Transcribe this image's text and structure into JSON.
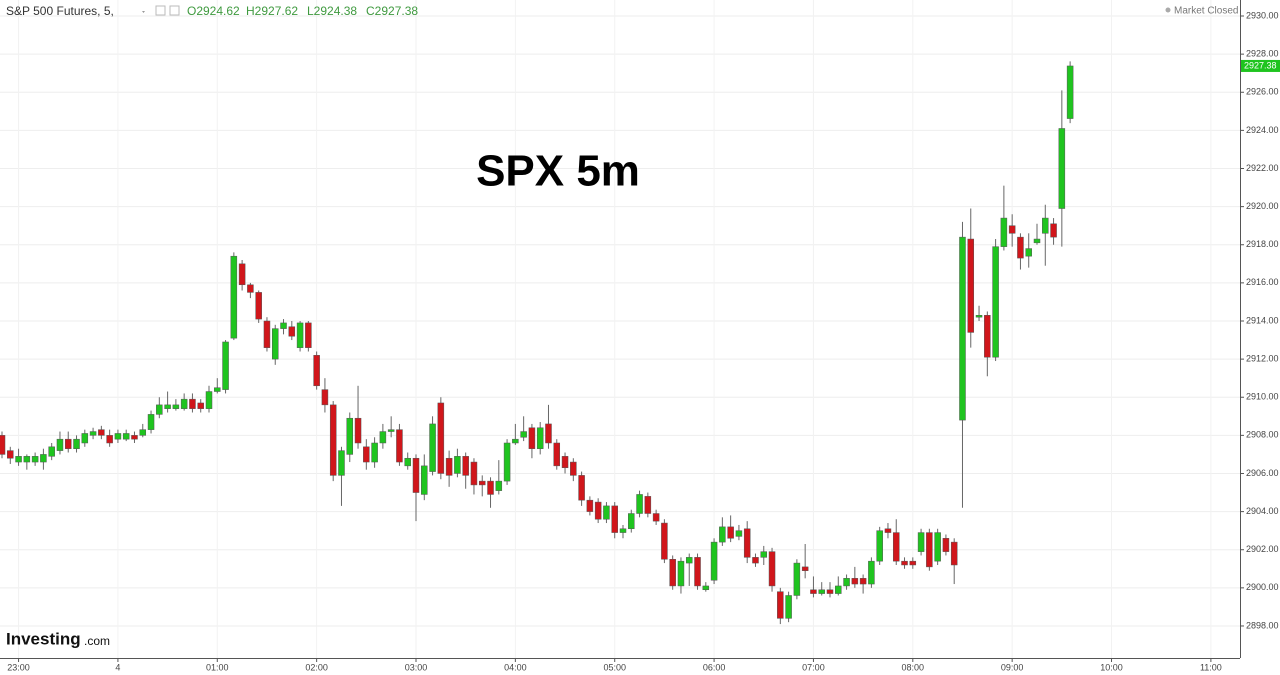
{
  "header": {
    "symbol": "S&P 500 Futures, 5,",
    "open": "O2924.62",
    "high": "H2927.62",
    "low": "L2924.38",
    "close": "C2927.38",
    "status": "Market Closed"
  },
  "logo": {
    "brand": "Investing",
    "suffix": ".com"
  },
  "chart_data": {
    "type": "candlestick",
    "title": "SPX 5m",
    "up_color": "#1fc41f",
    "down_color": "#d0161b",
    "grid": true,
    "ylim": [
      2896.32,
      2930.84
    ],
    "yticks": [
      {
        "value": 2898,
        "label": "2898.00"
      },
      {
        "value": 2900,
        "label": "2900.00"
      },
      {
        "value": 2902,
        "label": "2902.00"
      },
      {
        "value": 2904,
        "label": "2904.00"
      },
      {
        "value": 2906,
        "label": "2906.00"
      },
      {
        "value": 2908,
        "label": "2908.00"
      },
      {
        "value": 2910,
        "label": "2910.00"
      },
      {
        "value": 2912,
        "label": "2912.00"
      },
      {
        "value": 2914,
        "label": "2914.00"
      },
      {
        "value": 2916,
        "label": "2916.00"
      },
      {
        "value": 2918,
        "label": "2918.00"
      },
      {
        "value": 2920,
        "label": "2920.00"
      },
      {
        "value": 2922,
        "label": "2922.00"
      },
      {
        "value": 2924,
        "label": "2924.00"
      },
      {
        "value": 2926,
        "label": "2926.00"
      },
      {
        "value": 2928,
        "label": "2928.00"
      },
      {
        "value": 2930,
        "label": "2930.00"
      }
    ],
    "categories": [
      null,
      null,
      "23:00",
      null,
      null,
      null,
      null,
      null,
      null,
      null,
      null,
      null,
      null,
      null,
      "4",
      null,
      null,
      null,
      null,
      null,
      null,
      null,
      null,
      null,
      null,
      null,
      "01:00",
      null,
      null,
      null,
      null,
      null,
      null,
      null,
      null,
      null,
      null,
      null,
      "02:00",
      null,
      null,
      null,
      null,
      null,
      null,
      null,
      null,
      null,
      null,
      null,
      "03:00",
      null,
      null,
      null,
      null,
      null,
      null,
      null,
      null,
      null,
      null,
      null,
      "04:00",
      null,
      null,
      null,
      null,
      null,
      null,
      null,
      null,
      null,
      null,
      null,
      "05:00",
      null,
      null,
      null,
      null,
      null,
      null,
      null,
      null,
      null,
      null,
      null,
      "06:00",
      null,
      null,
      null,
      null,
      null,
      null,
      null,
      null,
      null,
      null,
      null,
      "07:00",
      null,
      null,
      null,
      null,
      null,
      null,
      null,
      null,
      null,
      null,
      null,
      "08:00",
      null,
      null,
      null,
      null,
      null,
      null,
      null,
      null,
      null,
      null,
      null,
      "09:00",
      null,
      null,
      null,
      null,
      null,
      null,
      null,
      null,
      null,
      null,
      null,
      "10:00",
      null,
      null,
      null,
      null,
      null,
      null,
      null,
      null,
      null,
      null,
      null,
      "11:00",
      null,
      null,
      null
    ],
    "open": [
      2908.0,
      2907.2,
      2906.6,
      2906.6,
      2906.6,
      2906.6,
      2906.9,
      2907.2,
      2907.8,
      2907.3,
      2907.6,
      2908.0,
      2908.3,
      2908.0,
      2907.8,
      2907.8,
      2908.0,
      2908.0,
      2908.3,
      2909.1,
      2909.4,
      2909.4,
      2909.4,
      2909.9,
      2909.7,
      2909.4,
      2910.3,
      2910.4,
      2913.1,
      2917.0,
      2915.9,
      2915.5,
      2914.0,
      2912.0,
      2913.6,
      2913.7,
      2912.6,
      2913.9,
      2912.2,
      2910.4,
      2909.6,
      2905.9,
      2907.0,
      2908.9,
      2907.4,
      2906.6,
      2907.6,
      2908.2,
      2908.3,
      2906.4,
      2906.8,
      2904.9,
      2906.1,
      2909.7,
      2906.8,
      2906.0,
      2906.9,
      2906.6,
      2905.6,
      2905.6,
      2905.1,
      2905.6,
      2907.6,
      2907.9,
      2908.4,
      2907.3,
      2908.6,
      2907.6,
      2906.9,
      2906.6,
      2905.9,
      2904.6,
      2904.5,
      2903.6,
      2904.3,
      2902.9,
      2903.1,
      2903.9,
      2904.8,
      2903.9,
      2903.4,
      2901.5,
      2900.1,
      2901.3,
      2901.6,
      2899.9,
      2900.4,
      2902.4,
      2903.2,
      2902.7,
      2903.1,
      2901.6,
      2901.6,
      2901.9,
      2899.8,
      2898.4,
      2899.6,
      2901.1,
      2899.9,
      2899.7,
      2899.9,
      2899.7,
      2900.1,
      2900.5,
      2900.5,
      2900.2,
      2901.4,
      2903.1,
      2902.9,
      2901.4,
      2901.4,
      2901.9,
      2902.9,
      2901.4,
      2902.6,
      2902.4,
      2908.8,
      2918.3,
      2914.2,
      2914.3,
      2912.1,
      2917.9,
      2919.0,
      2918.4,
      2917.4,
      2918.1,
      2918.6,
      2919.1,
      2919.9,
      2924.62,
      null,
      null,
      null,
      null,
      null,
      null,
      null,
      null,
      null,
      null,
      null,
      null,
      null,
      null,
      null,
      null,
      null,
      null,
      null,
      null
    ],
    "high": [
      2908.2,
      2907.4,
      2907.3,
      2907.0,
      2907.1,
      2907.3,
      2907.6,
      2908.2,
      2908.2,
      2908.0,
      2908.3,
      2908.4,
      2908.5,
      2908.3,
      2908.3,
      2908.3,
      2908.2,
      2908.6,
      2909.3,
      2910.0,
      2910.3,
      2909.9,
      2910.2,
      2910.2,
      2909.9,
      2910.6,
      2911.0,
      2913.0,
      2917.6,
      2917.2,
      2916.0,
      2915.6,
      2914.2,
      2913.8,
      2914.1,
      2914.0,
      2914.0,
      2914.0,
      2912.4,
      2911.0,
      2909.8,
      2907.4,
      2909.2,
      2910.6,
      2907.8,
      2907.9,
      2908.6,
      2909.0,
      2908.6,
      2907.1,
      2907.0,
      2907.0,
      2909.0,
      2910.0,
      2907.2,
      2907.3,
      2907.1,
      2906.8,
      2905.9,
      2905.8,
      2906.7,
      2907.8,
      2908.6,
      2909.0,
      2908.6,
      2908.7,
      2909.6,
      2907.8,
      2907.1,
      2906.8,
      2906.1,
      2904.8,
      2904.7,
      2904.5,
      2904.5,
      2903.3,
      2904.1,
      2905.1,
      2905.0,
      2904.1,
      2903.6,
      2901.7,
      2901.6,
      2901.8,
      2901.8,
      2900.3,
      2902.6,
      2903.7,
      2903.8,
      2903.3,
      2903.5,
      2901.8,
      2902.2,
      2902.1,
      2900.0,
      2899.8,
      2901.5,
      2902.3,
      2900.6,
      2900.3,
      2900.3,
      2900.6,
      2900.7,
      2901.1,
      2900.7,
      2901.6,
      2903.2,
      2903.4,
      2903.6,
      2901.6,
      2901.6,
      2903.1,
      2903.1,
      2903.1,
      2902.8,
      2902.6,
      2919.2,
      2919.9,
      2914.8,
      2914.5,
      2918.3,
      2921.1,
      2919.6,
      2918.6,
      2918.6,
      2919.1,
      2920.1,
      2919.4,
      2926.1,
      2927.62,
      null,
      null,
      null,
      null,
      null,
      null,
      null,
      null,
      null,
      null,
      null,
      null,
      null,
      null,
      null,
      null,
      null,
      null,
      null,
      null
    ],
    "low": [
      2906.8,
      2906.5,
      2906.4,
      2906.2,
      2906.4,
      2906.2,
      2906.7,
      2907.0,
      2907.1,
      2907.1,
      2907.4,
      2907.8,
      2907.8,
      2907.4,
      2907.6,
      2907.7,
      2907.6,
      2907.9,
      2908.1,
      2908.9,
      2909.2,
      2909.3,
      2909.3,
      2909.2,
      2909.2,
      2909.2,
      2910.2,
      2910.2,
      2913.0,
      2915.6,
      2915.2,
      2913.9,
      2912.4,
      2911.7,
      2913.3,
      2913.0,
      2912.4,
      2912.4,
      2910.4,
      2909.2,
      2905.6,
      2904.3,
      2906.6,
      2907.3,
      2906.2,
      2906.3,
      2907.3,
      2907.9,
      2906.4,
      2906.2,
      2903.5,
      2904.6,
      2905.9,
      2905.7,
      2905.3,
      2905.8,
      2905.2,
      2904.9,
      2904.8,
      2904.2,
      2904.9,
      2905.4,
      2907.5,
      2907.7,
      2906.8,
      2907.0,
      2907.3,
      2906.2,
      2906.0,
      2905.6,
      2904.3,
      2903.8,
      2903.4,
      2903.4,
      2902.6,
      2902.6,
      2902.9,
      2903.7,
      2903.7,
      2903.3,
      2901.3,
      2899.9,
      2899.7,
      2900.1,
      2899.9,
      2899.8,
      2900.2,
      2902.2,
      2902.4,
      2902.5,
      2901.3,
      2901.1,
      2901.2,
      2899.8,
      2898.1,
      2898.2,
      2899.4,
      2900.5,
      2899.5,
      2899.6,
      2899.5,
      2899.6,
      2899.9,
      2900.0,
      2899.7,
      2900.0,
      2901.2,
      2902.6,
      2901.2,
      2901.0,
      2901.0,
      2901.7,
      2900.9,
      2901.2,
      2901.7,
      2900.2,
      2904.2,
      2912.6,
      2914.0,
      2911.1,
      2911.9,
      2917.7,
      2917.9,
      2916.7,
      2916.8,
      2918.0,
      2916.9,
      2918.0,
      2917.9,
      2924.38,
      null,
      null,
      null,
      null,
      null,
      null,
      null,
      null,
      null,
      null,
      null,
      null,
      null,
      null,
      null,
      null,
      null,
      null,
      null,
      null
    ],
    "close": [
      2907.0,
      2906.8,
      2906.9,
      2906.9,
      2906.9,
      2907.0,
      2907.4,
      2907.8,
      2907.3,
      2907.8,
      2908.1,
      2908.2,
      2908.0,
      2907.6,
      2908.1,
      2908.1,
      2907.8,
      2908.3,
      2909.1,
      2909.6,
      2909.6,
      2909.6,
      2909.9,
      2909.4,
      2909.4,
      2910.3,
      2910.5,
      2912.9,
      2917.4,
      2915.9,
      2915.5,
      2914.1,
      2912.6,
      2913.6,
      2913.9,
      2913.2,
      2913.9,
      2912.6,
      2910.6,
      2909.6,
      2905.9,
      2907.2,
      2908.9,
      2907.6,
      2906.6,
      2907.6,
      2908.2,
      2908.3,
      2906.6,
      2906.8,
      2905.0,
      2906.4,
      2908.6,
      2906.0,
      2905.9,
      2906.9,
      2905.9,
      2905.4,
      2905.4,
      2904.9,
      2905.6,
      2907.6,
      2907.8,
      2908.2,
      2907.3,
      2908.4,
      2907.6,
      2906.4,
      2906.3,
      2905.9,
      2904.6,
      2904.0,
      2903.6,
      2904.3,
      2902.9,
      2903.1,
      2903.9,
      2904.9,
      2903.9,
      2903.5,
      2901.5,
      2900.1,
      2901.4,
      2901.6,
      2900.1,
      2900.1,
      2902.4,
      2903.2,
      2902.6,
      2903.0,
      2901.6,
      2901.3,
      2901.9,
      2900.1,
      2898.4,
      2899.6,
      2901.3,
      2900.9,
      2899.7,
      2899.9,
      2899.7,
      2900.1,
      2900.5,
      2900.2,
      2900.2,
      2901.4,
      2903.0,
      2902.9,
      2901.4,
      2901.2,
      2901.2,
      2902.9,
      2901.1,
      2902.9,
      2901.9,
      2901.2,
      2918.4,
      2913.4,
      2914.3,
      2912.1,
      2917.9,
      2919.4,
      2918.6,
      2917.3,
      2917.8,
      2918.3,
      2919.4,
      2918.4,
      2924.1,
      2927.38,
      null,
      null,
      null,
      null,
      null,
      null,
      null,
      null,
      null,
      null,
      null,
      null,
      null,
      null,
      null,
      null,
      null,
      null,
      null,
      null
    ]
  }
}
